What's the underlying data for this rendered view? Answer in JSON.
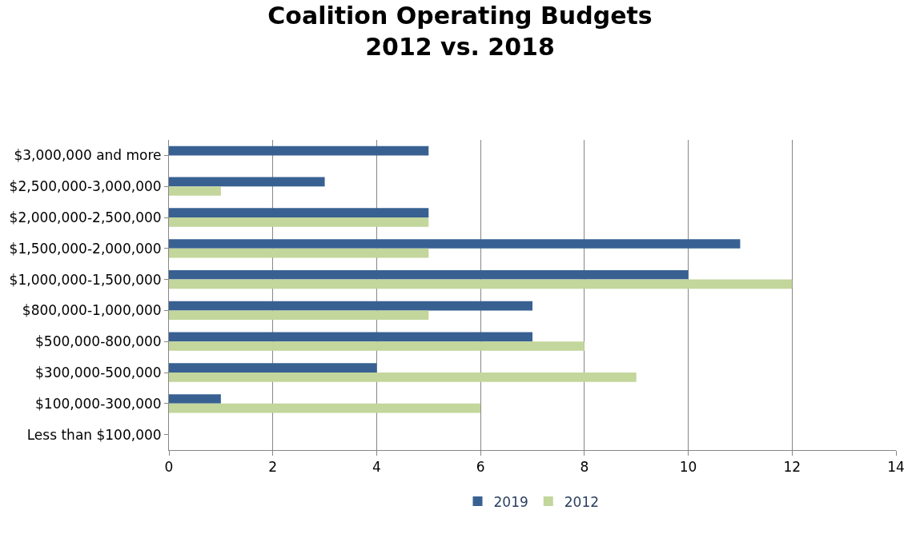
{
  "chart_data": {
    "type": "bar",
    "orientation": "horizontal",
    "title": "Coalition Operating Budgets\n2012 vs. 2018",
    "categories": [
      "$3,000,000 and more",
      "$2,500,000-3,000,000",
      "$2,000,000-2,500,000",
      "$1,500,000-2,000,000",
      "$1,000,000-1,500,000",
      "$800,000-1,000,000",
      "$500,000-800,000",
      "$300,000-500,000",
      "$100,000-300,000",
      "Less than $100,000"
    ],
    "series": [
      {
        "name": "2019",
        "color": "#386192",
        "values": [
          5,
          3,
          5,
          11,
          10,
          7,
          7,
          4,
          1,
          0
        ]
      },
      {
        "name": "2012",
        "color": "#c3d69b",
        "values": [
          0,
          1,
          5,
          5,
          12,
          5,
          8,
          9,
          6,
          0
        ]
      }
    ],
    "xlim": [
      0,
      14
    ],
    "xticks": [
      0,
      2,
      4,
      6,
      8,
      10,
      12,
      14
    ],
    "grid": "x",
    "legend": "bottom"
  }
}
